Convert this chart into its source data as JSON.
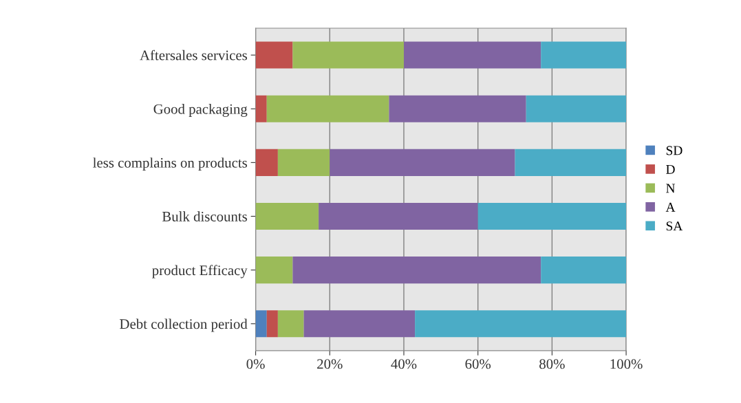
{
  "chart_data": {
    "type": "bar",
    "orientation": "horizontal",
    "stacked": true,
    "categories": [
      "Aftersales services",
      "Good packaging",
      "less complains on products",
      "Bulk discounts",
      "product Efficacy",
      "Debt collection period"
    ],
    "series": [
      {
        "name": "SD",
        "color": "#4f81bd",
        "values": [
          0,
          0,
          0,
          0,
          0,
          3
        ]
      },
      {
        "name": "D",
        "color": "#c0504d",
        "values": [
          10,
          3,
          6,
          0,
          0,
          3
        ]
      },
      {
        "name": "N",
        "color": "#9bbb59",
        "values": [
          30,
          33,
          14,
          17,
          10,
          7
        ]
      },
      {
        "name": "A",
        "color": "#8064a2",
        "values": [
          37,
          37,
          50,
          43,
          67,
          30
        ]
      },
      {
        "name": "SA",
        "color": "#4bacc6",
        "values": [
          23,
          27,
          30,
          40,
          23,
          57
        ]
      }
    ],
    "xlim": [
      0,
      100
    ],
    "xticks": [
      {
        "value": 0,
        "label": "0%"
      },
      {
        "value": 20,
        "label": "20%"
      },
      {
        "value": 40,
        "label": "40%"
      },
      {
        "value": 60,
        "label": "60%"
      },
      {
        "value": 80,
        "label": "80%"
      },
      {
        "value": 100,
        "label": "100%"
      }
    ],
    "grid": "x",
    "legend": "right"
  }
}
